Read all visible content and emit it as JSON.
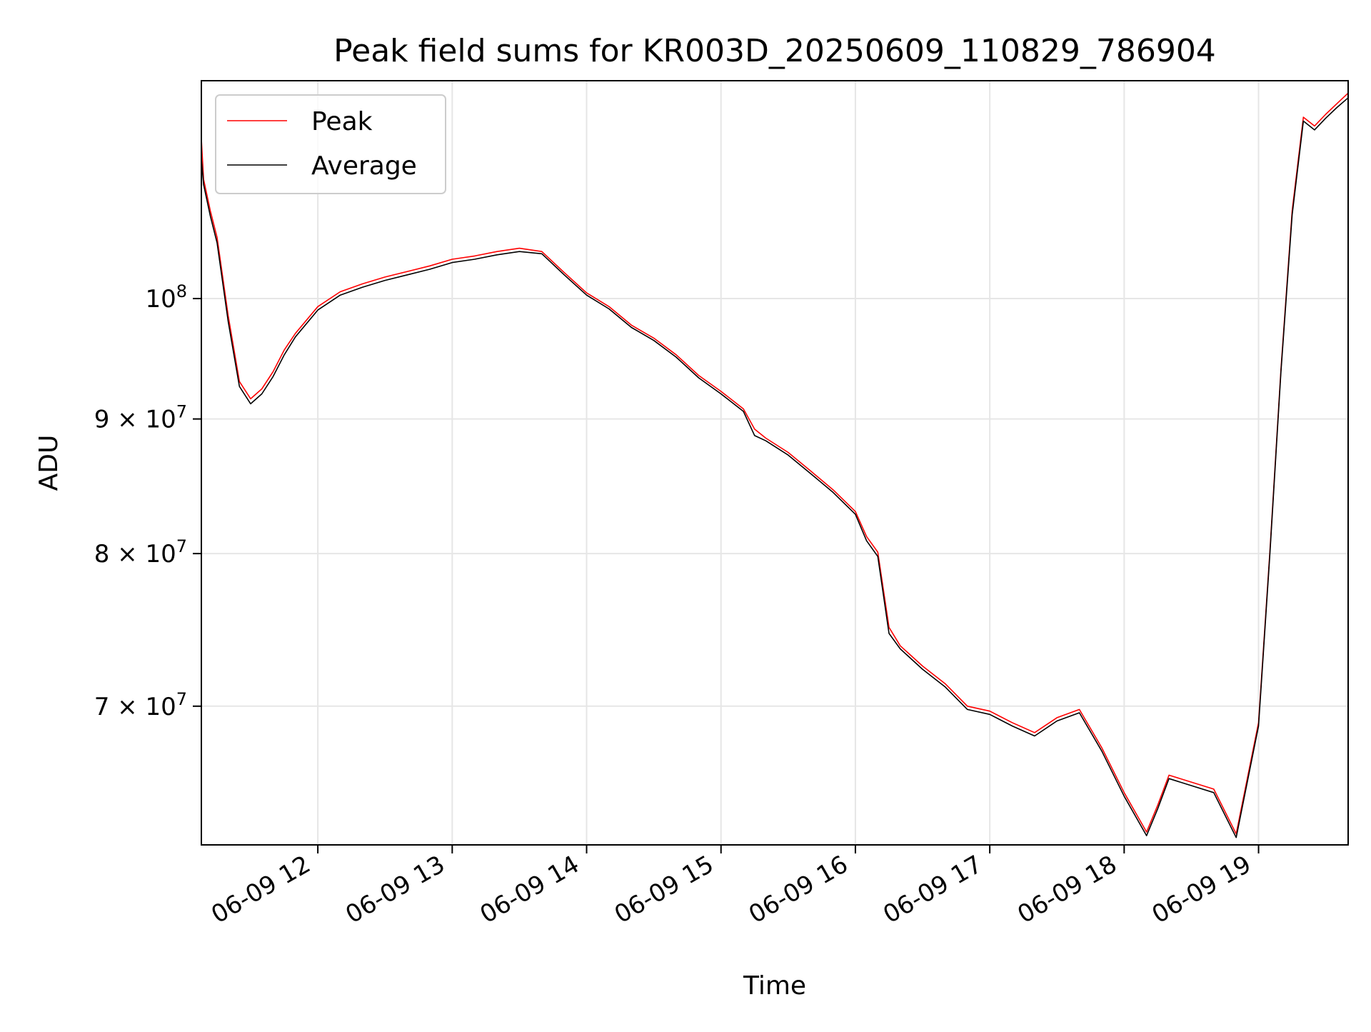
{
  "chart_data": {
    "type": "line",
    "title": "Peak field sums for KR003D_20250609_110829_786904",
    "xlabel": "Time",
    "ylabel": "ADU",
    "yscale": "log",
    "grid": true,
    "legend_position": "top-left",
    "xlim": [
      "2025-06-09T11:08",
      "2025-06-09T19:40"
    ],
    "ylim": [
      62000000,
      121000000
    ],
    "x_ticks": [
      {
        "value": "2025-06-09T12:00",
        "label": "06-09 12"
      },
      {
        "value": "2025-06-09T13:00",
        "label": "06-09 13"
      },
      {
        "value": "2025-06-09T14:00",
        "label": "06-09 14"
      },
      {
        "value": "2025-06-09T15:00",
        "label": "06-09 15"
      },
      {
        "value": "2025-06-09T16:00",
        "label": "06-09 16"
      },
      {
        "value": "2025-06-09T17:00",
        "label": "06-09 17"
      },
      {
        "value": "2025-06-09T18:00",
        "label": "06-09 18"
      },
      {
        "value": "2025-06-09T19:00",
        "label": "06-09 19"
      }
    ],
    "y_ticks": [
      {
        "value": 70000000,
        "mantissa": "7",
        "base": "10",
        "exponent": "7"
      },
      {
        "value": 80000000,
        "mantissa": "8",
        "base": "10",
        "exponent": "7"
      },
      {
        "value": 90000000,
        "mantissa": "9",
        "base": "10",
        "exponent": "7"
      },
      {
        "value": 100000000,
        "mantissa": "",
        "base": "10",
        "exponent": "8"
      }
    ],
    "series": [
      {
        "name": "Peak",
        "color": "#ff0000",
        "x": [
          "2025-06-09T11:08",
          "2025-06-09T11:09",
          "2025-06-09T11:12",
          "2025-06-09T11:15",
          "2025-06-09T11:20",
          "2025-06-09T11:25",
          "2025-06-09T11:30",
          "2025-06-09T11:35",
          "2025-06-09T11:40",
          "2025-06-09T11:45",
          "2025-06-09T11:50",
          "2025-06-09T12:00",
          "2025-06-09T12:10",
          "2025-06-09T12:20",
          "2025-06-09T12:30",
          "2025-06-09T12:40",
          "2025-06-09T12:50",
          "2025-06-09T13:00",
          "2025-06-09T13:10",
          "2025-06-09T13:20",
          "2025-06-09T13:30",
          "2025-06-09T13:40",
          "2025-06-09T13:50",
          "2025-06-09T14:00",
          "2025-06-09T14:10",
          "2025-06-09T14:20",
          "2025-06-09T14:30",
          "2025-06-09T14:40",
          "2025-06-09T14:50",
          "2025-06-09T15:00",
          "2025-06-09T15:10",
          "2025-06-09T15:15",
          "2025-06-09T15:20",
          "2025-06-09T15:30",
          "2025-06-09T15:40",
          "2025-06-09T15:50",
          "2025-06-09T16:00",
          "2025-06-09T16:05",
          "2025-06-09T16:10",
          "2025-06-09T16:15",
          "2025-06-09T16:20",
          "2025-06-09T16:30",
          "2025-06-09T16:40",
          "2025-06-09T16:50",
          "2025-06-09T17:00",
          "2025-06-09T17:10",
          "2025-06-09T17:20",
          "2025-06-09T17:30",
          "2025-06-09T17:40",
          "2025-06-09T17:50",
          "2025-06-09T18:00",
          "2025-06-09T18:10",
          "2025-06-09T18:15",
          "2025-06-09T18:20",
          "2025-06-09T18:30",
          "2025-06-09T18:40",
          "2025-06-09T18:50",
          "2025-06-09T19:00",
          "2025-06-09T19:05",
          "2025-06-09T19:10",
          "2025-06-09T19:15",
          "2025-06-09T19:20",
          "2025-06-09T19:25",
          "2025-06-09T19:30",
          "2025-06-09T19:35",
          "2025-06-09T19:40"
        ],
        "y": [
          115000000,
          111000000,
          108000000,
          105500000,
          98500000,
          93000000,
          91600000,
          92400000,
          93800000,
          95600000,
          97000000,
          99300000,
          100600000,
          101300000,
          101900000,
          102400000,
          102900000,
          103500000,
          103800000,
          104200000,
          104500000,
          104200000,
          102300000,
          100500000,
          99300000,
          97700000,
          96600000,
          95200000,
          93500000,
          92200000,
          90800000,
          89200000,
          88500000,
          87400000,
          86000000,
          84600000,
          83000000,
          81200000,
          80100000,
          75000000,
          73800000,
          72500000,
          71400000,
          70000000,
          69700000,
          69000000,
          68400000,
          69300000,
          69800000,
          67500000,
          64900000,
          62700000,
          64200000,
          65900000,
          65500000,
          65100000,
          62600000,
          69000000,
          80000000,
          94000000,
          108000000,
          117200000,
          116300000,
          117500000,
          118600000,
          119700000
        ]
      },
      {
        "name": "Average",
        "color": "#000000",
        "x": [
          "2025-06-09T11:08",
          "2025-06-09T11:09",
          "2025-06-09T11:12",
          "2025-06-09T11:15",
          "2025-06-09T11:20",
          "2025-06-09T11:25",
          "2025-06-09T11:30",
          "2025-06-09T11:35",
          "2025-06-09T11:40",
          "2025-06-09T11:45",
          "2025-06-09T11:50",
          "2025-06-09T12:00",
          "2025-06-09T12:10",
          "2025-06-09T12:20",
          "2025-06-09T12:30",
          "2025-06-09T12:40",
          "2025-06-09T12:50",
          "2025-06-09T13:00",
          "2025-06-09T13:10",
          "2025-06-09T13:20",
          "2025-06-09T13:30",
          "2025-06-09T13:40",
          "2025-06-09T13:50",
          "2025-06-09T14:00",
          "2025-06-09T14:10",
          "2025-06-09T14:20",
          "2025-06-09T14:30",
          "2025-06-09T14:40",
          "2025-06-09T14:50",
          "2025-06-09T15:00",
          "2025-06-09T15:10",
          "2025-06-09T15:15",
          "2025-06-09T15:20",
          "2025-06-09T15:30",
          "2025-06-09T15:40",
          "2025-06-09T15:50",
          "2025-06-09T16:00",
          "2025-06-09T16:05",
          "2025-06-09T16:10",
          "2025-06-09T16:15",
          "2025-06-09T16:20",
          "2025-06-09T16:30",
          "2025-06-09T16:40",
          "2025-06-09T16:50",
          "2025-06-09T17:00",
          "2025-06-09T17:10",
          "2025-06-09T17:20",
          "2025-06-09T17:30",
          "2025-06-09T17:40",
          "2025-06-09T17:50",
          "2025-06-09T18:00",
          "2025-06-09T18:10",
          "2025-06-09T18:15",
          "2025-06-09T18:20",
          "2025-06-09T18:30",
          "2025-06-09T18:40",
          "2025-06-09T18:50",
          "2025-06-09T19:00",
          "2025-06-09T19:05",
          "2025-06-09T19:10",
          "2025-06-09T19:15",
          "2025-06-09T19:20",
          "2025-06-09T19:25",
          "2025-06-09T19:30",
          "2025-06-09T19:35",
          "2025-06-09T19:40"
        ],
        "y": [
          113000000,
          110500000,
          107500000,
          105000000,
          98000000,
          92600000,
          91200000,
          92000000,
          93400000,
          95200000,
          96700000,
          99000000,
          100300000,
          101000000,
          101600000,
          102100000,
          102600000,
          103200000,
          103500000,
          103900000,
          104200000,
          104000000,
          102100000,
          100300000,
          99100000,
          97500000,
          96400000,
          95000000,
          93300000,
          92000000,
          90600000,
          88700000,
          88300000,
          87200000,
          85800000,
          84400000,
          82800000,
          80900000,
          79800000,
          74600000,
          73600000,
          72300000,
          71200000,
          69800000,
          69500000,
          68800000,
          68200000,
          69100000,
          69600000,
          67300000,
          64700000,
          62500000,
          64000000,
          65700000,
          65300000,
          64900000,
          62400000,
          68800000,
          79800000,
          93800000,
          107600000,
          116800000,
          115900000,
          117100000,
          118200000,
          119200000
        ]
      }
    ]
  }
}
